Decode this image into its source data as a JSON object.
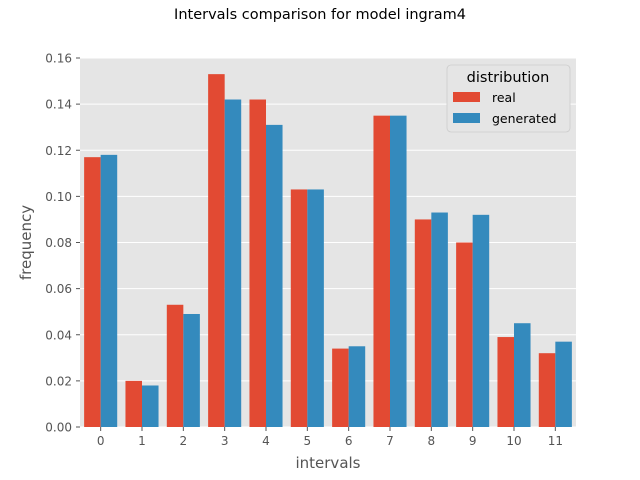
{
  "chart_data": {
    "type": "bar",
    "title": "Intervals comparison for model ingram4",
    "xlabel": "intervals",
    "ylabel": "frequency",
    "categories": [
      "0",
      "1",
      "2",
      "3",
      "4",
      "5",
      "6",
      "7",
      "8",
      "9",
      "10",
      "11"
    ],
    "ylim": [
      0,
      0.16
    ],
    "yticks": [
      "0.00",
      "0.02",
      "0.04",
      "0.06",
      "0.08",
      "0.10",
      "0.12",
      "0.14",
      "0.16"
    ],
    "grid": true,
    "legend": {
      "title": "distribution",
      "placement": "top-right"
    },
    "series": [
      {
        "name": "real",
        "color": "#E24A33",
        "values": [
          0.117,
          0.02,
          0.053,
          0.153,
          0.142,
          0.103,
          0.034,
          0.135,
          0.09,
          0.08,
          0.039,
          0.032
        ]
      },
      {
        "name": "generated",
        "color": "#348ABD",
        "values": [
          0.118,
          0.018,
          0.049,
          0.142,
          0.131,
          0.103,
          0.035,
          0.135,
          0.093,
          0.092,
          0.045,
          0.037
        ]
      }
    ],
    "colors": {
      "plot_background": "#E5E5E5",
      "grid": "#FFFFFF",
      "tick_text": "#555555"
    }
  }
}
